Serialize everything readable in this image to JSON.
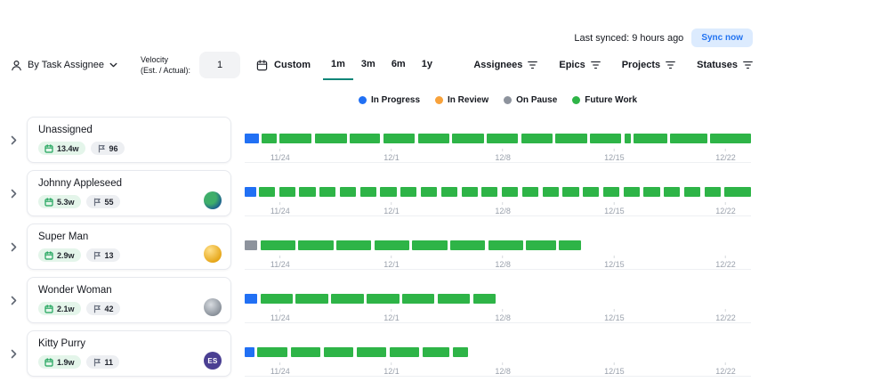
{
  "sync": {
    "status": "Last synced: 9 hours ago",
    "button_label": "Sync now"
  },
  "toolbar": {
    "group_by_label": "By Task Assignee",
    "velocity_line1": "Velocity",
    "velocity_line2": "(Est. / Actual):",
    "velocity_value": "1",
    "custom_label": "Custom",
    "range_tabs": [
      {
        "label": "1m",
        "active": true
      },
      {
        "label": "3m",
        "active": false
      },
      {
        "label": "6m",
        "active": false
      },
      {
        "label": "1y",
        "active": false
      }
    ],
    "filters": [
      {
        "label": "Assignees"
      },
      {
        "label": "Epics"
      },
      {
        "label": "Projects"
      },
      {
        "label": "Statuses"
      }
    ]
  },
  "legend": [
    {
      "label": "In Progress",
      "status": "in_progress"
    },
    {
      "label": "In Review",
      "status": "in_review"
    },
    {
      "label": "On Pause",
      "status": "on_pause"
    },
    {
      "label": "Future Work",
      "status": "future_work"
    }
  ],
  "colors": {
    "accent": "#0d8578",
    "sync_button_bg": "#dcebfe",
    "sync_button_text": "#2273f1",
    "status": {
      "in_progress": "#2170f4",
      "in_review": "#f8a23b",
      "on_pause": "#8d939d",
      "future_work": "#2eb447"
    }
  },
  "axis_ticks": [
    {
      "label": "11/24",
      "pos": 7
    },
    {
      "label": "12/1",
      "pos": 29
    },
    {
      "label": "12/8",
      "pos": 51
    },
    {
      "label": "12/15",
      "pos": 73
    },
    {
      "label": "12/22",
      "pos": 95
    }
  ],
  "rows": [
    {
      "name": "Unassigned",
      "duration": "13.4w",
      "task_count": "96",
      "avatar": null,
      "segments": [
        {
          "status": "in_progress",
          "start": 0,
          "end": 2.8
        },
        {
          "status": "future_work",
          "start": 3.4,
          "end": 6.3
        },
        {
          "status": "future_work",
          "start": 6.9,
          "end": 13.2
        },
        {
          "status": "future_work",
          "start": 13.8,
          "end": 20.2
        },
        {
          "status": "future_work",
          "start": 20.8,
          "end": 26.8
        },
        {
          "status": "future_work",
          "start": 27.4,
          "end": 33.6
        },
        {
          "status": "future_work",
          "start": 34.2,
          "end": 40.4
        },
        {
          "status": "future_work",
          "start": 41,
          "end": 47.2
        },
        {
          "status": "future_work",
          "start": 47.8,
          "end": 54
        },
        {
          "status": "future_work",
          "start": 54.6,
          "end": 60.8
        },
        {
          "status": "future_work",
          "start": 61.4,
          "end": 67.6
        },
        {
          "status": "future_work",
          "start": 68.2,
          "end": 74.4
        },
        {
          "status": "future_work",
          "start": 75,
          "end": 76.2
        },
        {
          "status": "future_work",
          "start": 76.8,
          "end": 83.4
        },
        {
          "status": "future_work",
          "start": 84,
          "end": 91.4
        },
        {
          "status": "future_work",
          "start": 92,
          "end": 100
        }
      ]
    },
    {
      "name": "Johnny Appleseed",
      "duration": "5.3w",
      "task_count": "55",
      "avatar": {
        "name": "globe-avatar",
        "initials": null,
        "bg": null
      },
      "segments": [
        {
          "status": "in_progress",
          "start": 0,
          "end": 2.2
        },
        {
          "status": "future_work",
          "start": 2.8,
          "end": 6
        },
        {
          "status": "future_work",
          "start": 6.8,
          "end": 10
        },
        {
          "status": "future_work",
          "start": 10.8,
          "end": 14
        },
        {
          "status": "future_work",
          "start": 14.8,
          "end": 18
        },
        {
          "status": "future_work",
          "start": 18.8,
          "end": 22
        },
        {
          "status": "future_work",
          "start": 22.8,
          "end": 26
        },
        {
          "status": "future_work",
          "start": 26.8,
          "end": 30
        },
        {
          "status": "future_work",
          "start": 30.8,
          "end": 34
        },
        {
          "status": "future_work",
          "start": 34.8,
          "end": 38
        },
        {
          "status": "future_work",
          "start": 38.8,
          "end": 42
        },
        {
          "status": "future_work",
          "start": 42.8,
          "end": 46
        },
        {
          "status": "future_work",
          "start": 46.8,
          "end": 50
        },
        {
          "status": "future_work",
          "start": 50.8,
          "end": 54
        },
        {
          "status": "future_work",
          "start": 54.8,
          "end": 58
        },
        {
          "status": "future_work",
          "start": 58.8,
          "end": 62
        },
        {
          "status": "future_work",
          "start": 62.8,
          "end": 66
        },
        {
          "status": "future_work",
          "start": 66.8,
          "end": 70
        },
        {
          "status": "future_work",
          "start": 70.8,
          "end": 74
        },
        {
          "status": "future_work",
          "start": 74.8,
          "end": 78
        },
        {
          "status": "future_work",
          "start": 78.8,
          "end": 82
        },
        {
          "status": "future_work",
          "start": 82.8,
          "end": 86
        },
        {
          "status": "future_work",
          "start": 86.8,
          "end": 90
        },
        {
          "status": "future_work",
          "start": 90.8,
          "end": 94
        },
        {
          "status": "future_work",
          "start": 94.8,
          "end": 100
        }
      ]
    },
    {
      "name": "Super Man",
      "duration": "2.9w",
      "task_count": "13",
      "avatar": {
        "name": "gold-ball-avatar",
        "initials": null,
        "bg": null
      },
      "segments": [
        {
          "status": "on_pause",
          "start": 0,
          "end": 2.5
        },
        {
          "status": "future_work",
          "start": 3.1,
          "end": 10
        },
        {
          "status": "future_work",
          "start": 10.6,
          "end": 17.5
        },
        {
          "status": "future_work",
          "start": 18.1,
          "end": 25
        },
        {
          "status": "future_work",
          "start": 25.6,
          "end": 32.5
        },
        {
          "status": "future_work",
          "start": 33.1,
          "end": 40
        },
        {
          "status": "future_work",
          "start": 40.6,
          "end": 47.5
        },
        {
          "status": "future_work",
          "start": 48.1,
          "end": 55
        },
        {
          "status": "future_work",
          "start": 55.6,
          "end": 61.5
        },
        {
          "status": "future_work",
          "start": 62.1,
          "end": 66.5
        }
      ]
    },
    {
      "name": "Wonder Woman",
      "duration": "2.1w",
      "task_count": "42",
      "avatar": {
        "name": "figure-avatar",
        "initials": null,
        "bg": null
      },
      "segments": [
        {
          "status": "in_progress",
          "start": 0,
          "end": 2.5
        },
        {
          "status": "future_work",
          "start": 3.1,
          "end": 9.5
        },
        {
          "status": "future_work",
          "start": 10.1,
          "end": 16.5
        },
        {
          "status": "future_work",
          "start": 17.1,
          "end": 23.5
        },
        {
          "status": "future_work",
          "start": 24.1,
          "end": 30.5
        },
        {
          "status": "future_work",
          "start": 31.1,
          "end": 37.5
        },
        {
          "status": "future_work",
          "start": 38.1,
          "end": 44.5
        },
        {
          "status": "future_work",
          "start": 45.1,
          "end": 49.6
        }
      ]
    },
    {
      "name": "Kitty Purry",
      "duration": "1.9w",
      "task_count": "11",
      "avatar": {
        "name": "initials-avatar",
        "initials": "ES",
        "bg": "#4a3f92"
      },
      "segments": [
        {
          "status": "in_progress",
          "start": 0,
          "end": 1.9
        },
        {
          "status": "future_work",
          "start": 2.5,
          "end": 8.5
        },
        {
          "status": "future_work",
          "start": 9.1,
          "end": 15
        },
        {
          "status": "future_work",
          "start": 15.6,
          "end": 21.5
        },
        {
          "status": "future_work",
          "start": 22.1,
          "end": 28
        },
        {
          "status": "future_work",
          "start": 28.6,
          "end": 34.5
        },
        {
          "status": "future_work",
          "start": 35.1,
          "end": 40.5
        },
        {
          "status": "future_work",
          "start": 41.1,
          "end": 44.2
        }
      ]
    }
  ]
}
